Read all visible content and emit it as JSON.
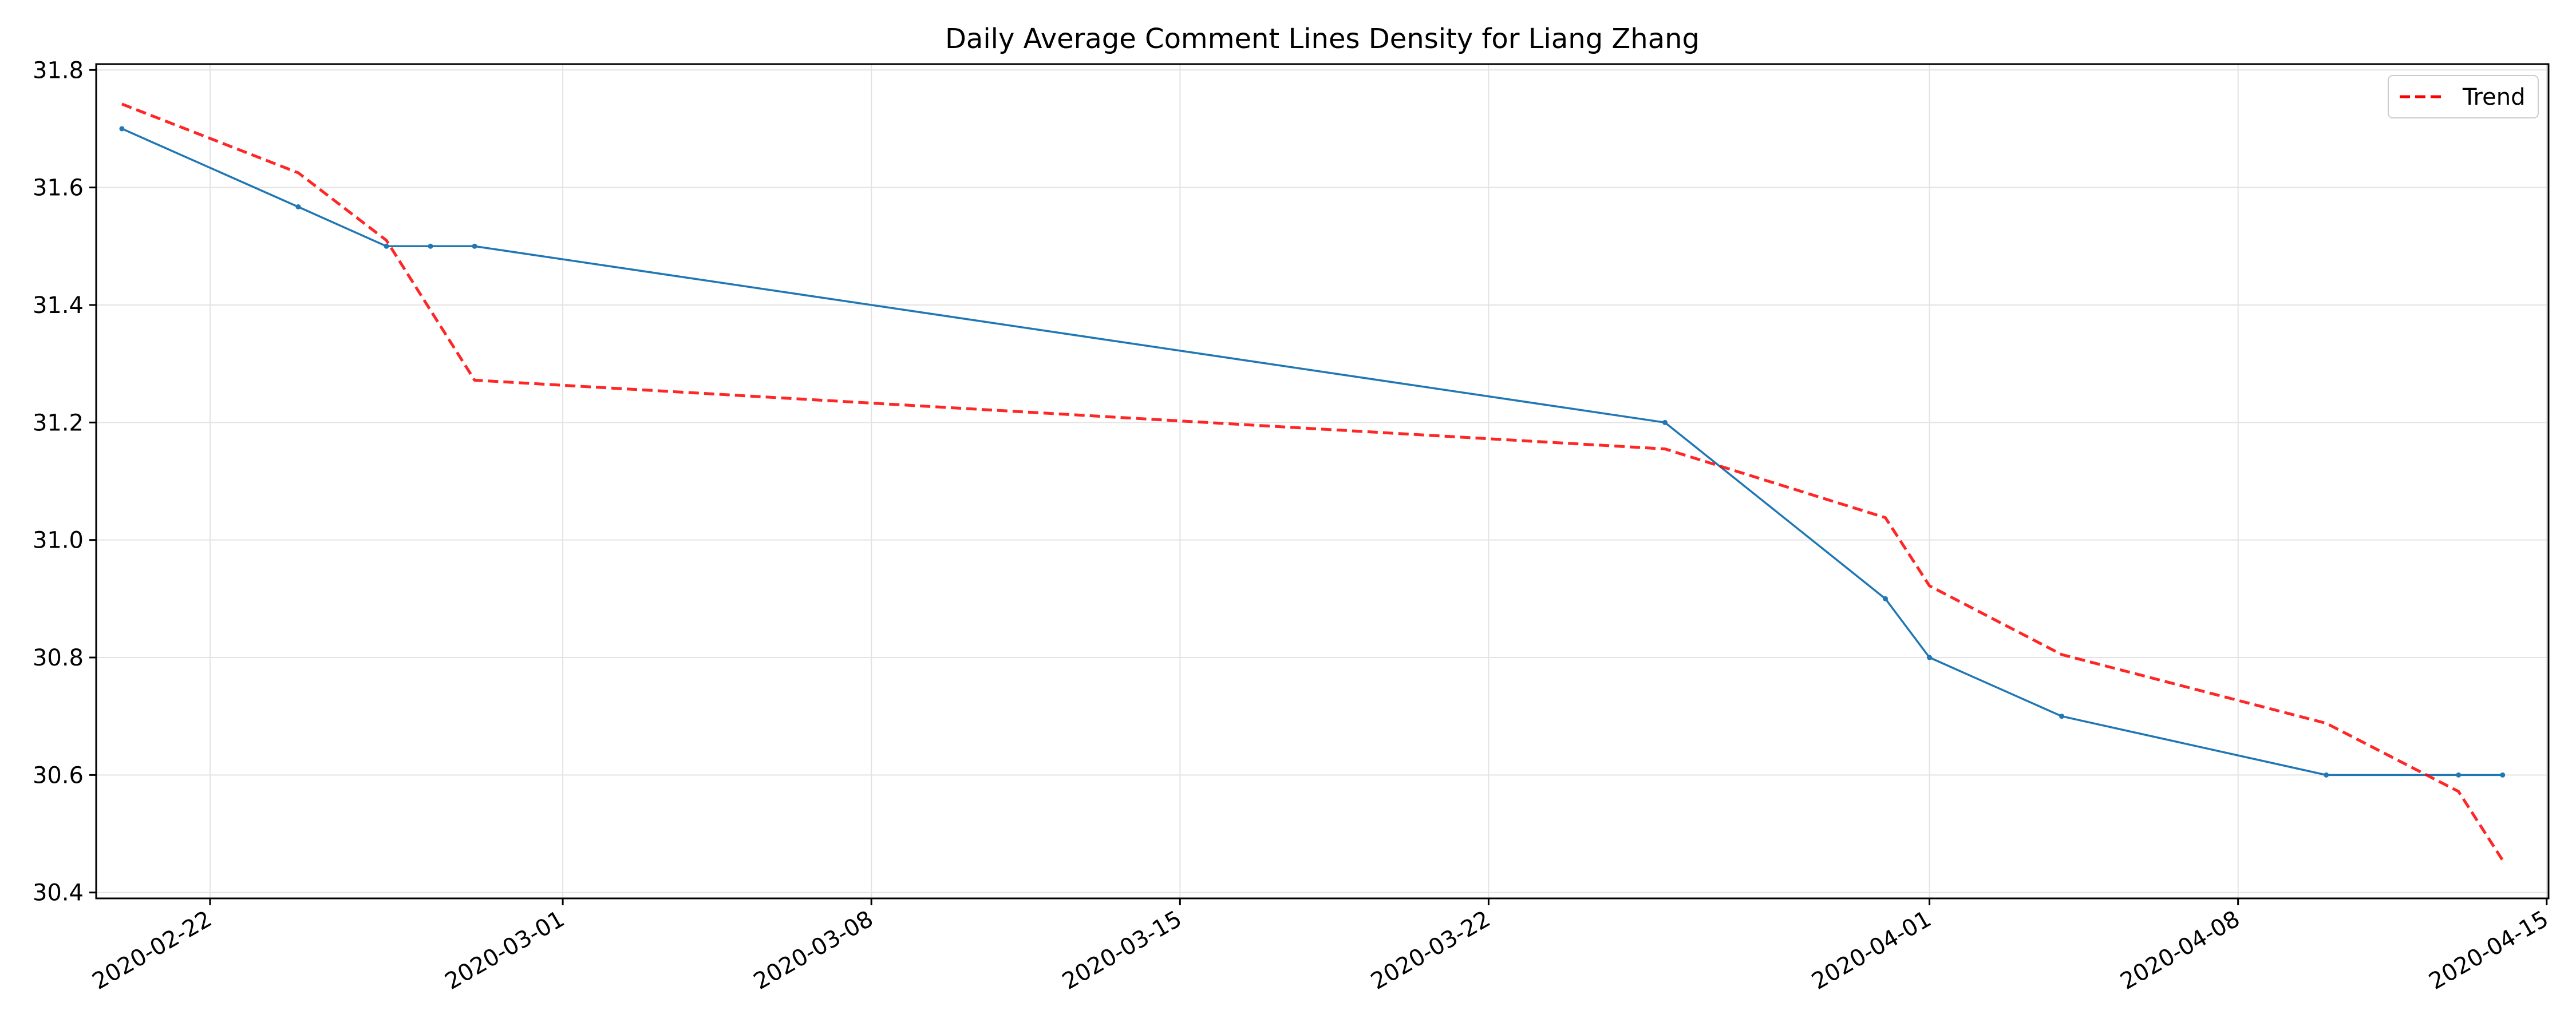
{
  "chart_data": {
    "type": "line",
    "title": "Daily Average Comment Lines Density for Liang Zhang",
    "xlabel": "",
    "ylabel": "",
    "x_type": "date",
    "xlim": [
      "2020-02-19T10:00",
      "2020-04-15T01:00"
    ],
    "ylim": [
      30.39,
      31.81
    ],
    "x_ticks": [
      "2020-02-22",
      "2020-03-01",
      "2020-03-08",
      "2020-03-15",
      "2020-03-22",
      "2020-04-01",
      "2020-04-08",
      "2020-04-15"
    ],
    "y_ticks": [
      30.4,
      30.6,
      30.8,
      31.0,
      31.2,
      31.4,
      31.6,
      31.8
    ],
    "grid": true,
    "legend": {
      "placement": "top-right",
      "entries": [
        "Trend"
      ]
    },
    "series": [
      {
        "color": "#1f77b4",
        "style": "solid",
        "markers": true,
        "points": [
          {
            "x": "2020-02-20",
            "y": 31.7
          },
          {
            "x": "2020-02-24",
            "y": 31.567
          },
          {
            "x": "2020-02-26",
            "y": 31.5
          },
          {
            "x": "2020-02-27",
            "y": 31.5
          },
          {
            "x": "2020-02-28",
            "y": 31.5
          },
          {
            "x": "2020-03-26",
            "y": 31.2
          },
          {
            "x": "2020-03-31",
            "y": 30.9
          },
          {
            "x": "2020-04-01",
            "y": 30.8
          },
          {
            "x": "2020-04-04",
            "y": 30.7
          },
          {
            "x": "2020-04-10",
            "y": 30.6
          },
          {
            "x": "2020-04-13",
            "y": 30.6
          },
          {
            "x": "2020-04-14",
            "y": 30.6
          }
        ]
      },
      {
        "name": "Trend",
        "color": "#ff0000",
        "style": "dashed",
        "markers": false,
        "points": [
          {
            "x": "2020-02-20",
            "y": 31.742
          },
          {
            "x": "2020-02-24",
            "y": 31.625
          },
          {
            "x": "2020-02-26",
            "y": 31.51
          },
          {
            "x": "2020-02-28",
            "y": 31.272
          },
          {
            "x": "2020-03-26",
            "y": 31.155
          },
          {
            "x": "2020-03-31",
            "y": 31.038
          },
          {
            "x": "2020-04-01",
            "y": 30.922
          },
          {
            "x": "2020-04-04",
            "y": 30.805
          },
          {
            "x": "2020-04-10",
            "y": 30.688
          },
          {
            "x": "2020-04-13",
            "y": 30.572
          },
          {
            "x": "2020-04-14",
            "y": 30.455
          }
        ]
      }
    ]
  }
}
